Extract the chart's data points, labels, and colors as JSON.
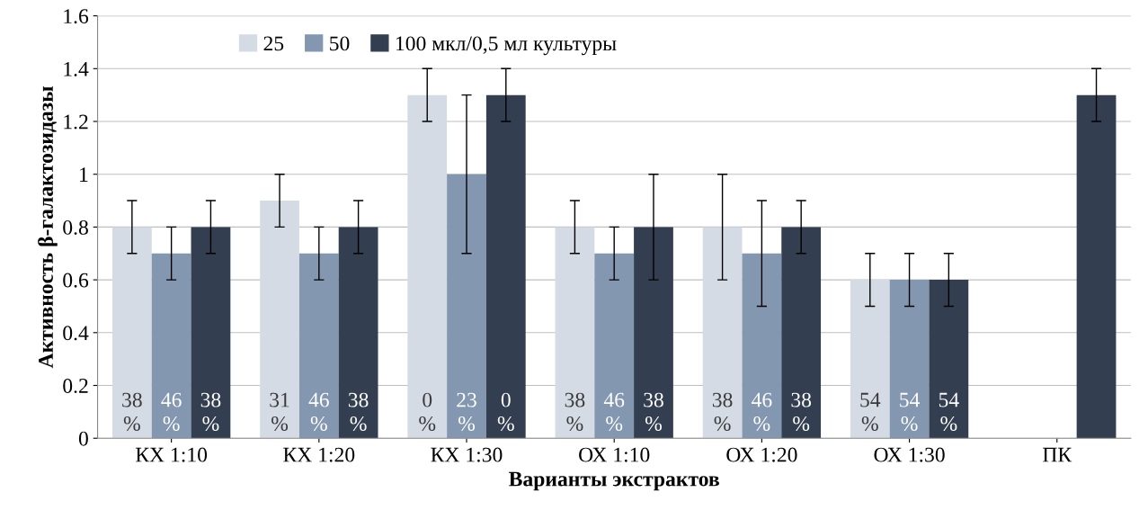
{
  "chart_data": {
    "type": "bar",
    "xlabel": "Варианты экстрактов",
    "ylabel": "Активность β-галактозидазы",
    "categories": [
      "КХ 1:10",
      "КХ 1:20",
      "КХ 1:30",
      "ОХ 1:10",
      "ОХ 1:20",
      "ОХ 1:30",
      "ПК"
    ],
    "series": [
      {
        "name": "25",
        "color": "#d5dbe5",
        "values": [
          0.8,
          0.9,
          1.3,
          0.8,
          0.8,
          0.6,
          null
        ],
        "errors": [
          0.1,
          0.1,
          0.1,
          0.1,
          0.2,
          0.1,
          null
        ]
      },
      {
        "name": "50",
        "color": "#8497b0",
        "values": [
          0.7,
          0.7,
          1.0,
          0.7,
          0.7,
          0.6,
          null
        ],
        "errors": [
          0.1,
          0.1,
          0.3,
          0.1,
          0.2,
          0.1,
          null
        ]
      },
      {
        "name": "100 мкл/0,5 мл культуры",
        "color": "#333f50",
        "values": [
          0.8,
          0.8,
          1.3,
          0.8,
          0.8,
          0.6,
          1.3
        ],
        "errors": [
          0.1,
          0.1,
          0.1,
          0.2,
          0.1,
          0.1,
          0.1
        ]
      }
    ],
    "annotations": [
      "38\n%",
      "46\n%",
      "38\n%",
      "31\n%",
      "46\n%",
      "38\n%",
      "0\n%",
      "23\n%",
      "0\n%",
      "38\n%",
      "46\n%",
      "38\n%",
      "38\n%",
      "46\n%",
      "38\n%",
      "54\n%",
      "54\n%",
      "54\n%"
    ],
    "ylim": [
      0,
      1.6
    ],
    "yticks": [
      0,
      0.2,
      0.4,
      0.6,
      0.8,
      1,
      1.2,
      1.4,
      1.6
    ],
    "grid": "y",
    "legend": "top"
  }
}
